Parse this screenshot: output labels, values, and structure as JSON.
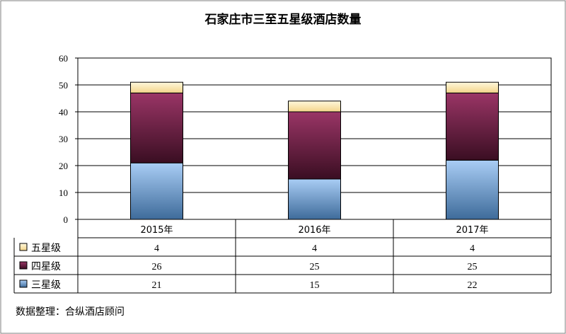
{
  "chart_data": {
    "type": "bar",
    "stacked": true,
    "title": "石家庄市三至五星级酒店数量",
    "categories": [
      "2015年",
      "2016年",
      "2017年"
    ],
    "ylim": [
      0,
      60
    ],
    "yticks": [
      "0",
      "10",
      "20",
      "30",
      "40",
      "50",
      "60"
    ],
    "grid": true,
    "series": [
      {
        "name": "三星级",
        "values": [
          21,
          15,
          22
        ],
        "color": "#8fb4e3"
      },
      {
        "name": "四星级",
        "values": [
          26,
          25,
          25
        ],
        "color": "#8b2a52"
      },
      {
        "name": "五星级",
        "values": [
          4,
          4,
          4
        ],
        "color": "#fde9b0"
      }
    ],
    "table_rows": [
      "五星级",
      "四星级",
      "三星级"
    ],
    "source": "数据整理：合纵酒店顾问"
  }
}
